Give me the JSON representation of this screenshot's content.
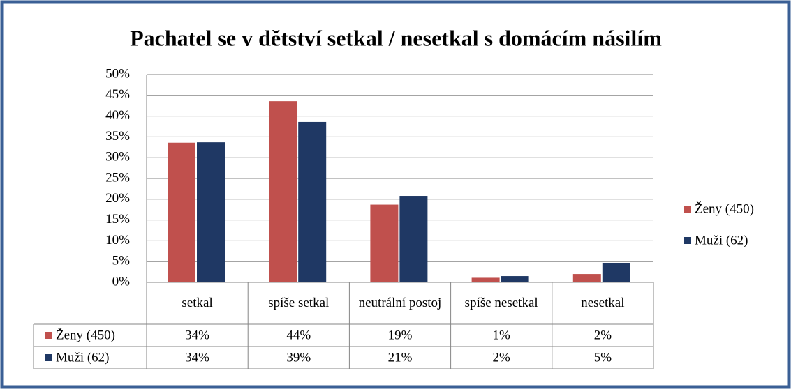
{
  "chart_data": {
    "type": "bar",
    "title": "Pachatel se v dětství setkal / nesetkal s domácím násilím",
    "categories": [
      "setkal",
      "spíše setkal",
      "neutrální postoj",
      "spíše nesetkal",
      "nesetkal"
    ],
    "series": [
      {
        "name": "Ženy (450)",
        "color": "#c0504d",
        "values": [
          33.6,
          43.6,
          18.7,
          1.1,
          2.0
        ],
        "value_labels": [
          "34%",
          "44%",
          "19%",
          "1%",
          "2%"
        ]
      },
      {
        "name": "Muži (62)",
        "color": "#1f3864",
        "values": [
          33.7,
          38.6,
          20.8,
          1.5,
          4.7
        ],
        "value_labels": [
          "34%",
          "39%",
          "21%",
          "2%",
          "5%"
        ]
      }
    ],
    "ylim": [
      0,
      50
    ],
    "yticks": [
      {
        "value": 0,
        "label": "0%"
      },
      {
        "value": 5,
        "label": "5%"
      },
      {
        "value": 10,
        "label": "10%"
      },
      {
        "value": 15,
        "label": "15%"
      },
      {
        "value": 20,
        "label": "20%"
      },
      {
        "value": 25,
        "label": "25%"
      },
      {
        "value": 30,
        "label": "30%"
      },
      {
        "value": 35,
        "label": "35%"
      },
      {
        "value": 40,
        "label": "40%"
      },
      {
        "value": 45,
        "label": "45%"
      },
      {
        "value": 50,
        "label": "50%"
      }
    ],
    "grid": true,
    "legend": "right"
  }
}
